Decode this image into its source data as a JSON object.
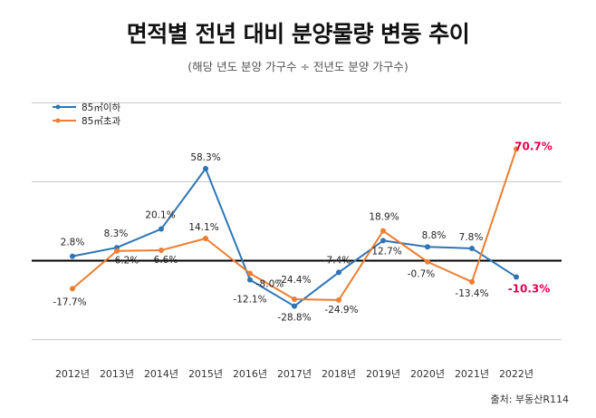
{
  "title": "면적별 전년 대비 분양물량 변동 추이",
  "subtitle": "(해당 년도 분양 가구수 ÷ 전년도 분양 가구수)",
  "source": "출처: 부동산R114",
  "chart_data": {
    "type": "line",
    "categories": [
      "2012년",
      "2013년",
      "2014년",
      "2015년",
      "2016년",
      "2017년",
      "2018년",
      "2019년",
      "2020년",
      "2021년",
      "2022년"
    ],
    "ylim": [
      -60,
      110
    ],
    "grid": true,
    "legend_position": "top-left",
    "series": [
      {
        "name": "85㎡이하",
        "color": "#2E75B6",
        "values": [
          2.8,
          8.3,
          20.1,
          58.3,
          -12.1,
          -28.8,
          -7.4,
          12.7,
          8.8,
          7.8,
          -10.3
        ],
        "labels": [
          "2.8%",
          "8.3%",
          "20.1%",
          "58.3%",
          "-12.1%",
          "-28.8%",
          "-7.4%",
          "12.7%",
          "8.8%",
          "7.8%",
          "-10.3%"
        ]
      },
      {
        "name": "85㎡초과",
        "color": "#ED7D31",
        "values": [
          -17.7,
          6.2,
          6.6,
          14.1,
          -8.0,
          -24.4,
          -24.9,
          18.9,
          -0.7,
          -13.4,
          70.7
        ],
        "labels": [
          "-17.7%",
          "6.2%",
          "6.6%",
          "14.1%",
          "-8.0%",
          "-24.4%",
          "-24.9%",
          "18.9%",
          "-0.7%",
          "-13.4%",
          "70.7%"
        ]
      }
    ],
    "highlight_color": "#E8004C"
  }
}
